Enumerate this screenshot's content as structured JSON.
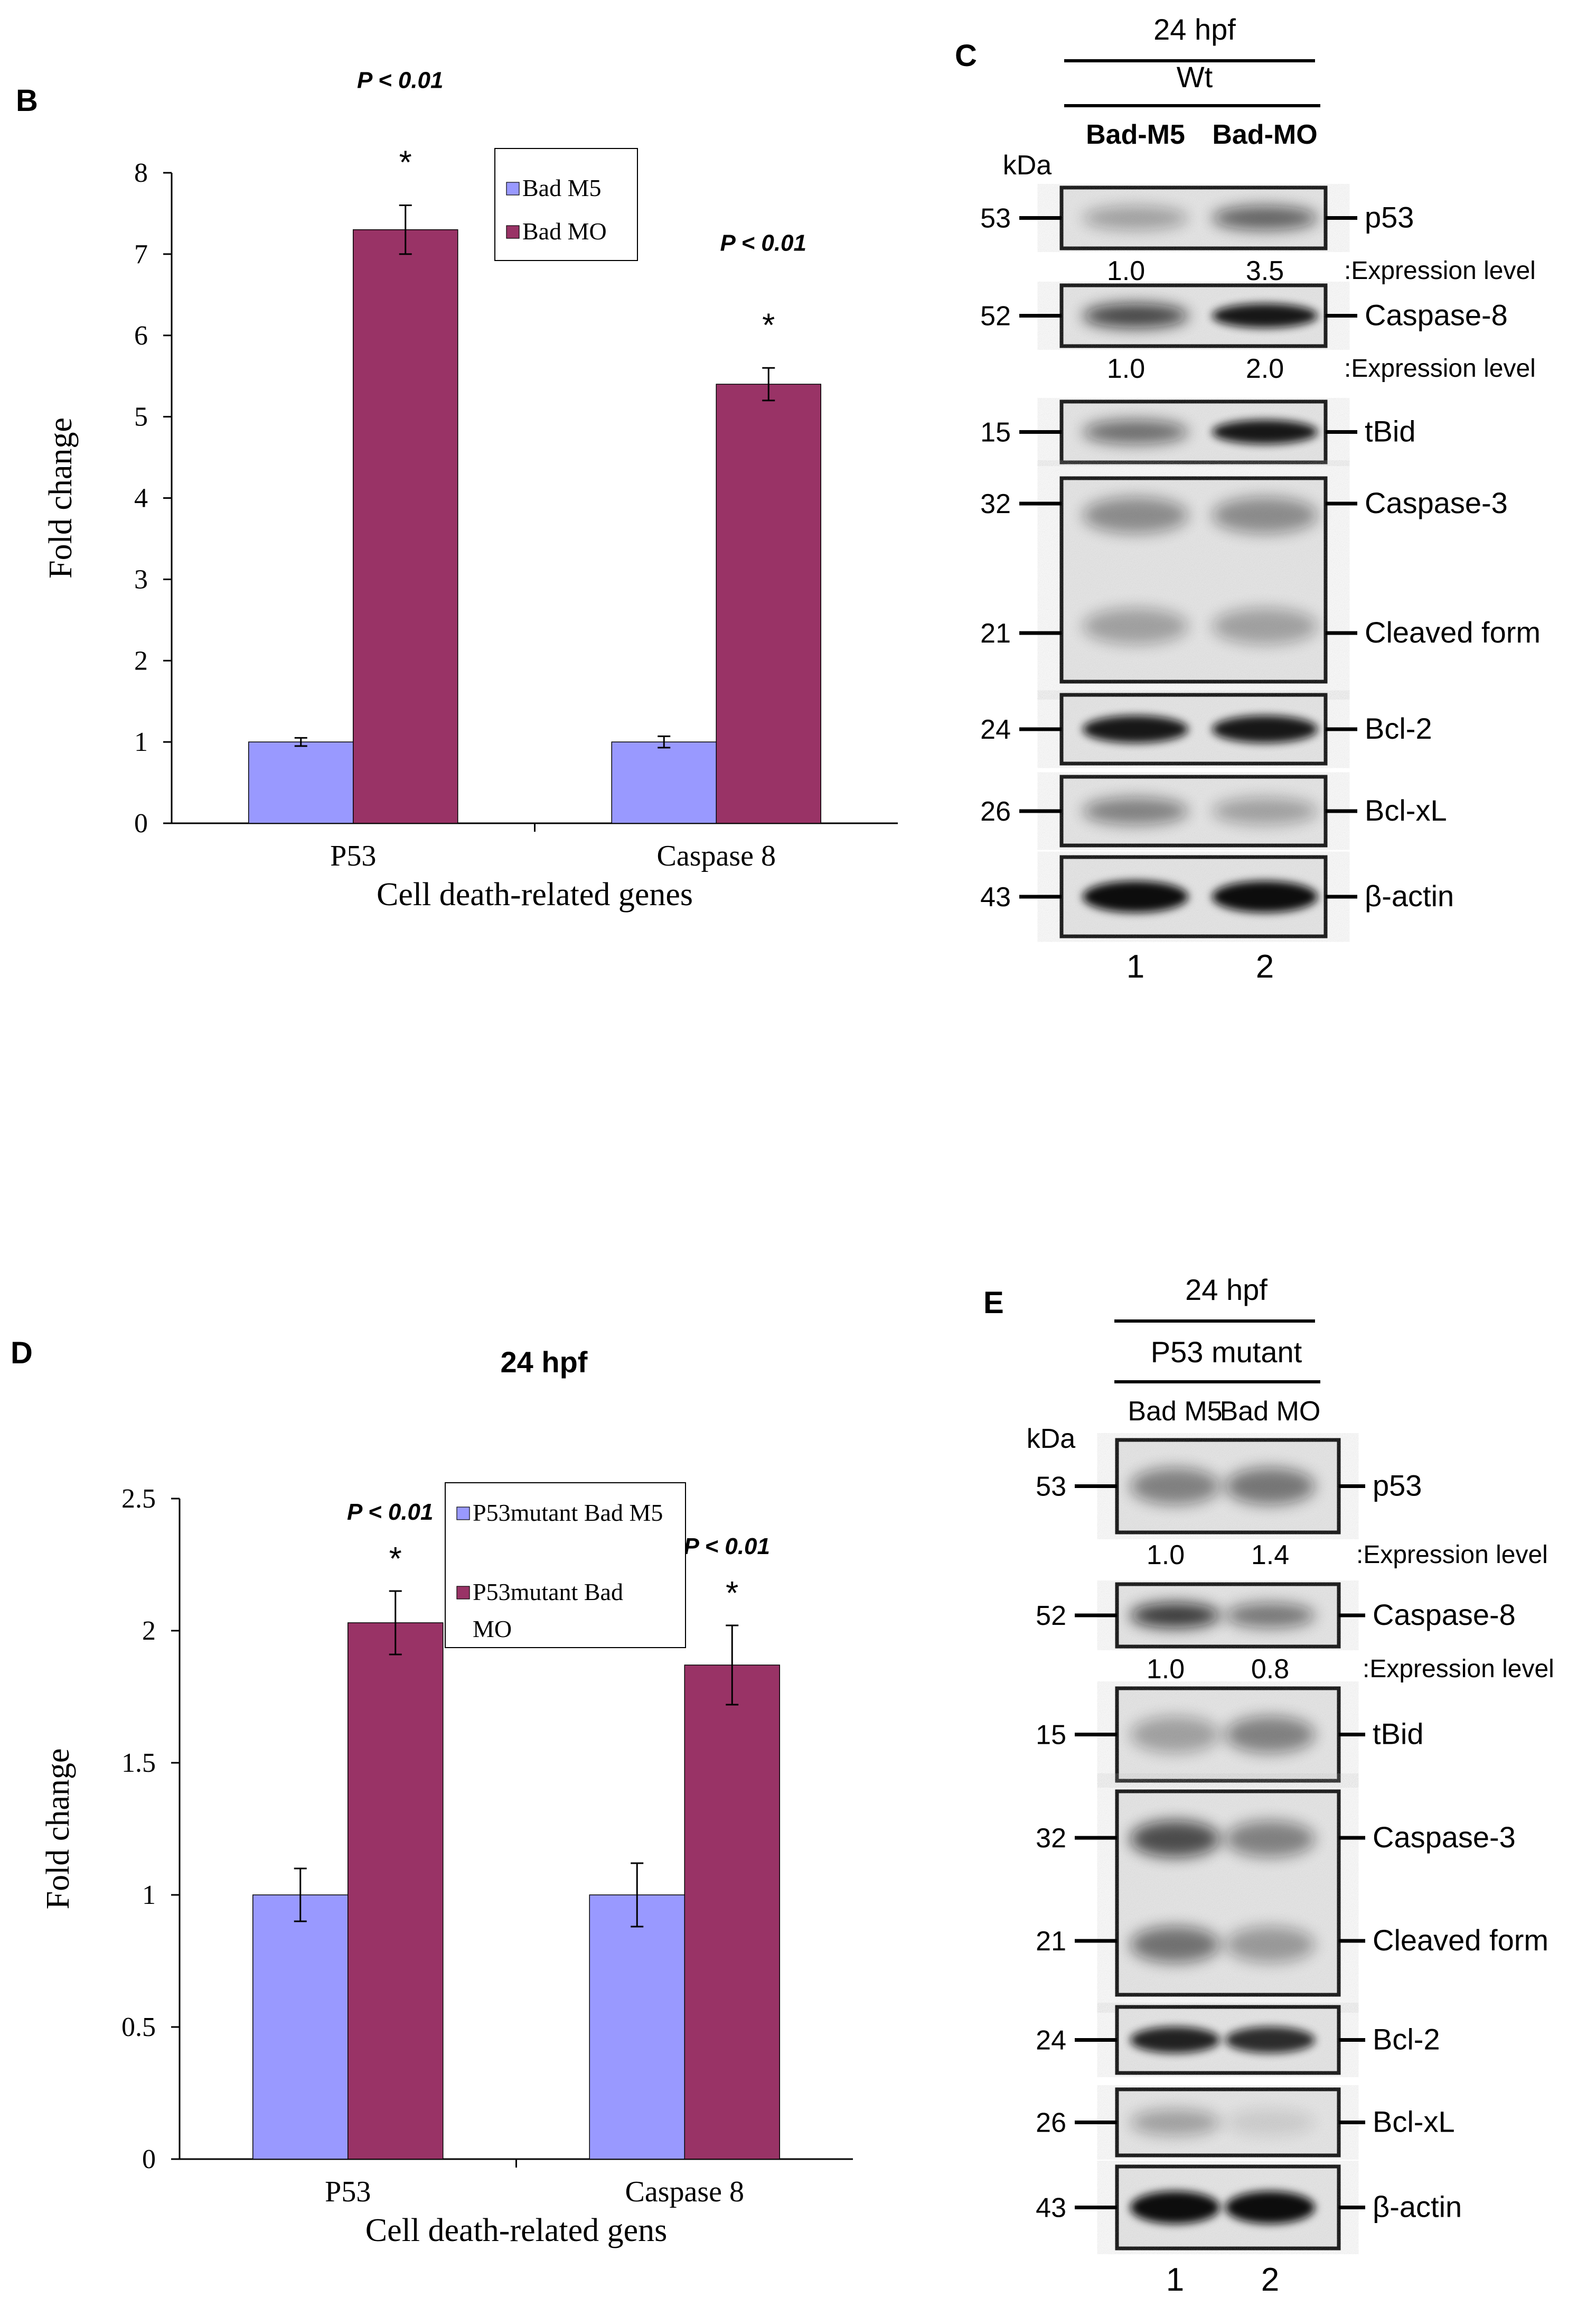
{
  "colors": {
    "m5": "#9999FF",
    "mo": "#993366",
    "text": "#000000"
  },
  "chart_data": [
    {
      "panel": "B",
      "type": "bar",
      "title": "",
      "xlabel": "Cell death-related genes",
      "ylabel": "Fold change",
      "categories": [
        "P53",
        "Caspase 8"
      ],
      "ylim": [
        0,
        8
      ],
      "yticks": [
        "0",
        "1",
        "2",
        "3",
        "4",
        "5",
        "6",
        "7",
        "8"
      ],
      "series": [
        {
          "name": "Bad M5",
          "values": [
            1.0,
            1.0
          ],
          "errors": [
            0.05,
            0.07
          ]
        },
        {
          "name": "Bad MO",
          "values": [
            7.3,
            5.4
          ],
          "errors": [
            0.3,
            0.2
          ]
        }
      ],
      "annotations": [
        {
          "category": 0,
          "text": "P < 0.01",
          "star": "*"
        },
        {
          "category": 1,
          "text": "P < 0.01",
          "star": "*"
        }
      ],
      "legend": "top-center"
    },
    {
      "panel": "D",
      "type": "bar",
      "title": "24 hpf",
      "xlabel": "Cell death-related gens",
      "ylabel": "Fold change",
      "categories": [
        "P53",
        "Caspase 8"
      ],
      "ylim": [
        0,
        2.5
      ],
      "yticks": [
        "0",
        "0.5",
        "1",
        "1.5",
        "2",
        "2.5"
      ],
      "series": [
        {
          "name": "P53mutant Bad M5",
          "values": [
            1.0,
            1.0
          ],
          "errors": [
            0.1,
            0.12
          ]
        },
        {
          "name": "P53mutant Bad MO",
          "values": [
            2.03,
            1.87
          ],
          "errors": [
            0.12,
            0.15
          ]
        }
      ],
      "annotations": [
        {
          "category": 0,
          "text": "P < 0.01",
          "star": "*"
        },
        {
          "category": 1,
          "text": "P < 0.01",
          "star": "*"
        }
      ],
      "legend": "top-center"
    }
  ],
  "blots": [
    {
      "panel": "C",
      "header": {
        "time": "24 hpf",
        "group": "Wt",
        "lanes": [
          "Bad-M5",
          "Bad-MO"
        ]
      },
      "kda_label": "kDa",
      "rows": [
        {
          "kda": [
            "53"
          ],
          "proteins": [
            "p53"
          ],
          "lane_intensity": [
            0.3,
            0.6
          ],
          "quant": [
            "1.0",
            "3.5"
          ],
          "quant_label": ":Expression level"
        },
        {
          "kda": [
            "52"
          ],
          "proteins": [
            "Caspase-8"
          ],
          "lane_intensity": [
            0.75,
            0.95
          ],
          "quant": [
            "1.0",
            "2.0"
          ],
          "quant_label": ":Expression level"
        },
        {
          "kda": [
            "15"
          ],
          "proteins": [
            "tBid"
          ],
          "lane_intensity": [
            0.55,
            0.95
          ]
        },
        {
          "kda": [
            "32",
            "21"
          ],
          "proteins": [
            "Caspase-3",
            "Cleaved  form"
          ],
          "lane_intensity": [
            0.4,
            0.4
          ]
        },
        {
          "kda": [
            "24"
          ],
          "proteins": [
            "Bcl-2"
          ],
          "lane_intensity": [
            0.95,
            0.95
          ]
        },
        {
          "kda": [
            "26"
          ],
          "proteins": [
            "Bcl-xL"
          ],
          "lane_intensity": [
            0.45,
            0.3
          ]
        },
        {
          "kda": [
            "43"
          ],
          "proteins": [
            "β-actin"
          ],
          "lane_intensity": [
            1.0,
            1.0
          ]
        }
      ],
      "lane_numbers": [
        "1",
        "2"
      ]
    },
    {
      "panel": "E",
      "header": {
        "time": "24 hpf",
        "group": "P53 mutant",
        "lanes": [
          "Bad M5",
          "Bad MO"
        ]
      },
      "kda_label": "kDa",
      "rows": [
        {
          "kda": [
            "53"
          ],
          "proteins": [
            "p53"
          ],
          "lane_intensity": [
            0.45,
            0.5
          ],
          "quant": [
            "1.0",
            "1.4"
          ],
          "quant_label": ":Expression level"
        },
        {
          "kda": [
            "52"
          ],
          "proteins": [
            "Caspase-8"
          ],
          "lane_intensity": [
            0.8,
            0.5
          ],
          "quant": [
            "1.0",
            "0.8"
          ],
          "quant_label": ":Expression level"
        },
        {
          "kda": [
            "15"
          ],
          "proteins": [
            "tBid"
          ],
          "lane_intensity": [
            0.3,
            0.45
          ]
        },
        {
          "kda": [
            "32",
            "21"
          ],
          "proteins": [
            "Caspase-3",
            "Cleaved  form"
          ],
          "lane_intensity": [
            0.7,
            0.45
          ]
        },
        {
          "kda": [
            "24"
          ],
          "proteins": [
            "Bcl-2"
          ],
          "lane_intensity": [
            0.9,
            0.85
          ]
        },
        {
          "kda": [
            "26"
          ],
          "proteins": [
            "Bcl-xL"
          ],
          "lane_intensity": [
            0.3,
            0.1
          ]
        },
        {
          "kda": [
            "43"
          ],
          "proteins": [
            "β-actin"
          ],
          "lane_intensity": [
            1.0,
            1.0
          ]
        }
      ],
      "lane_numbers": [
        "1",
        "2"
      ]
    }
  ]
}
